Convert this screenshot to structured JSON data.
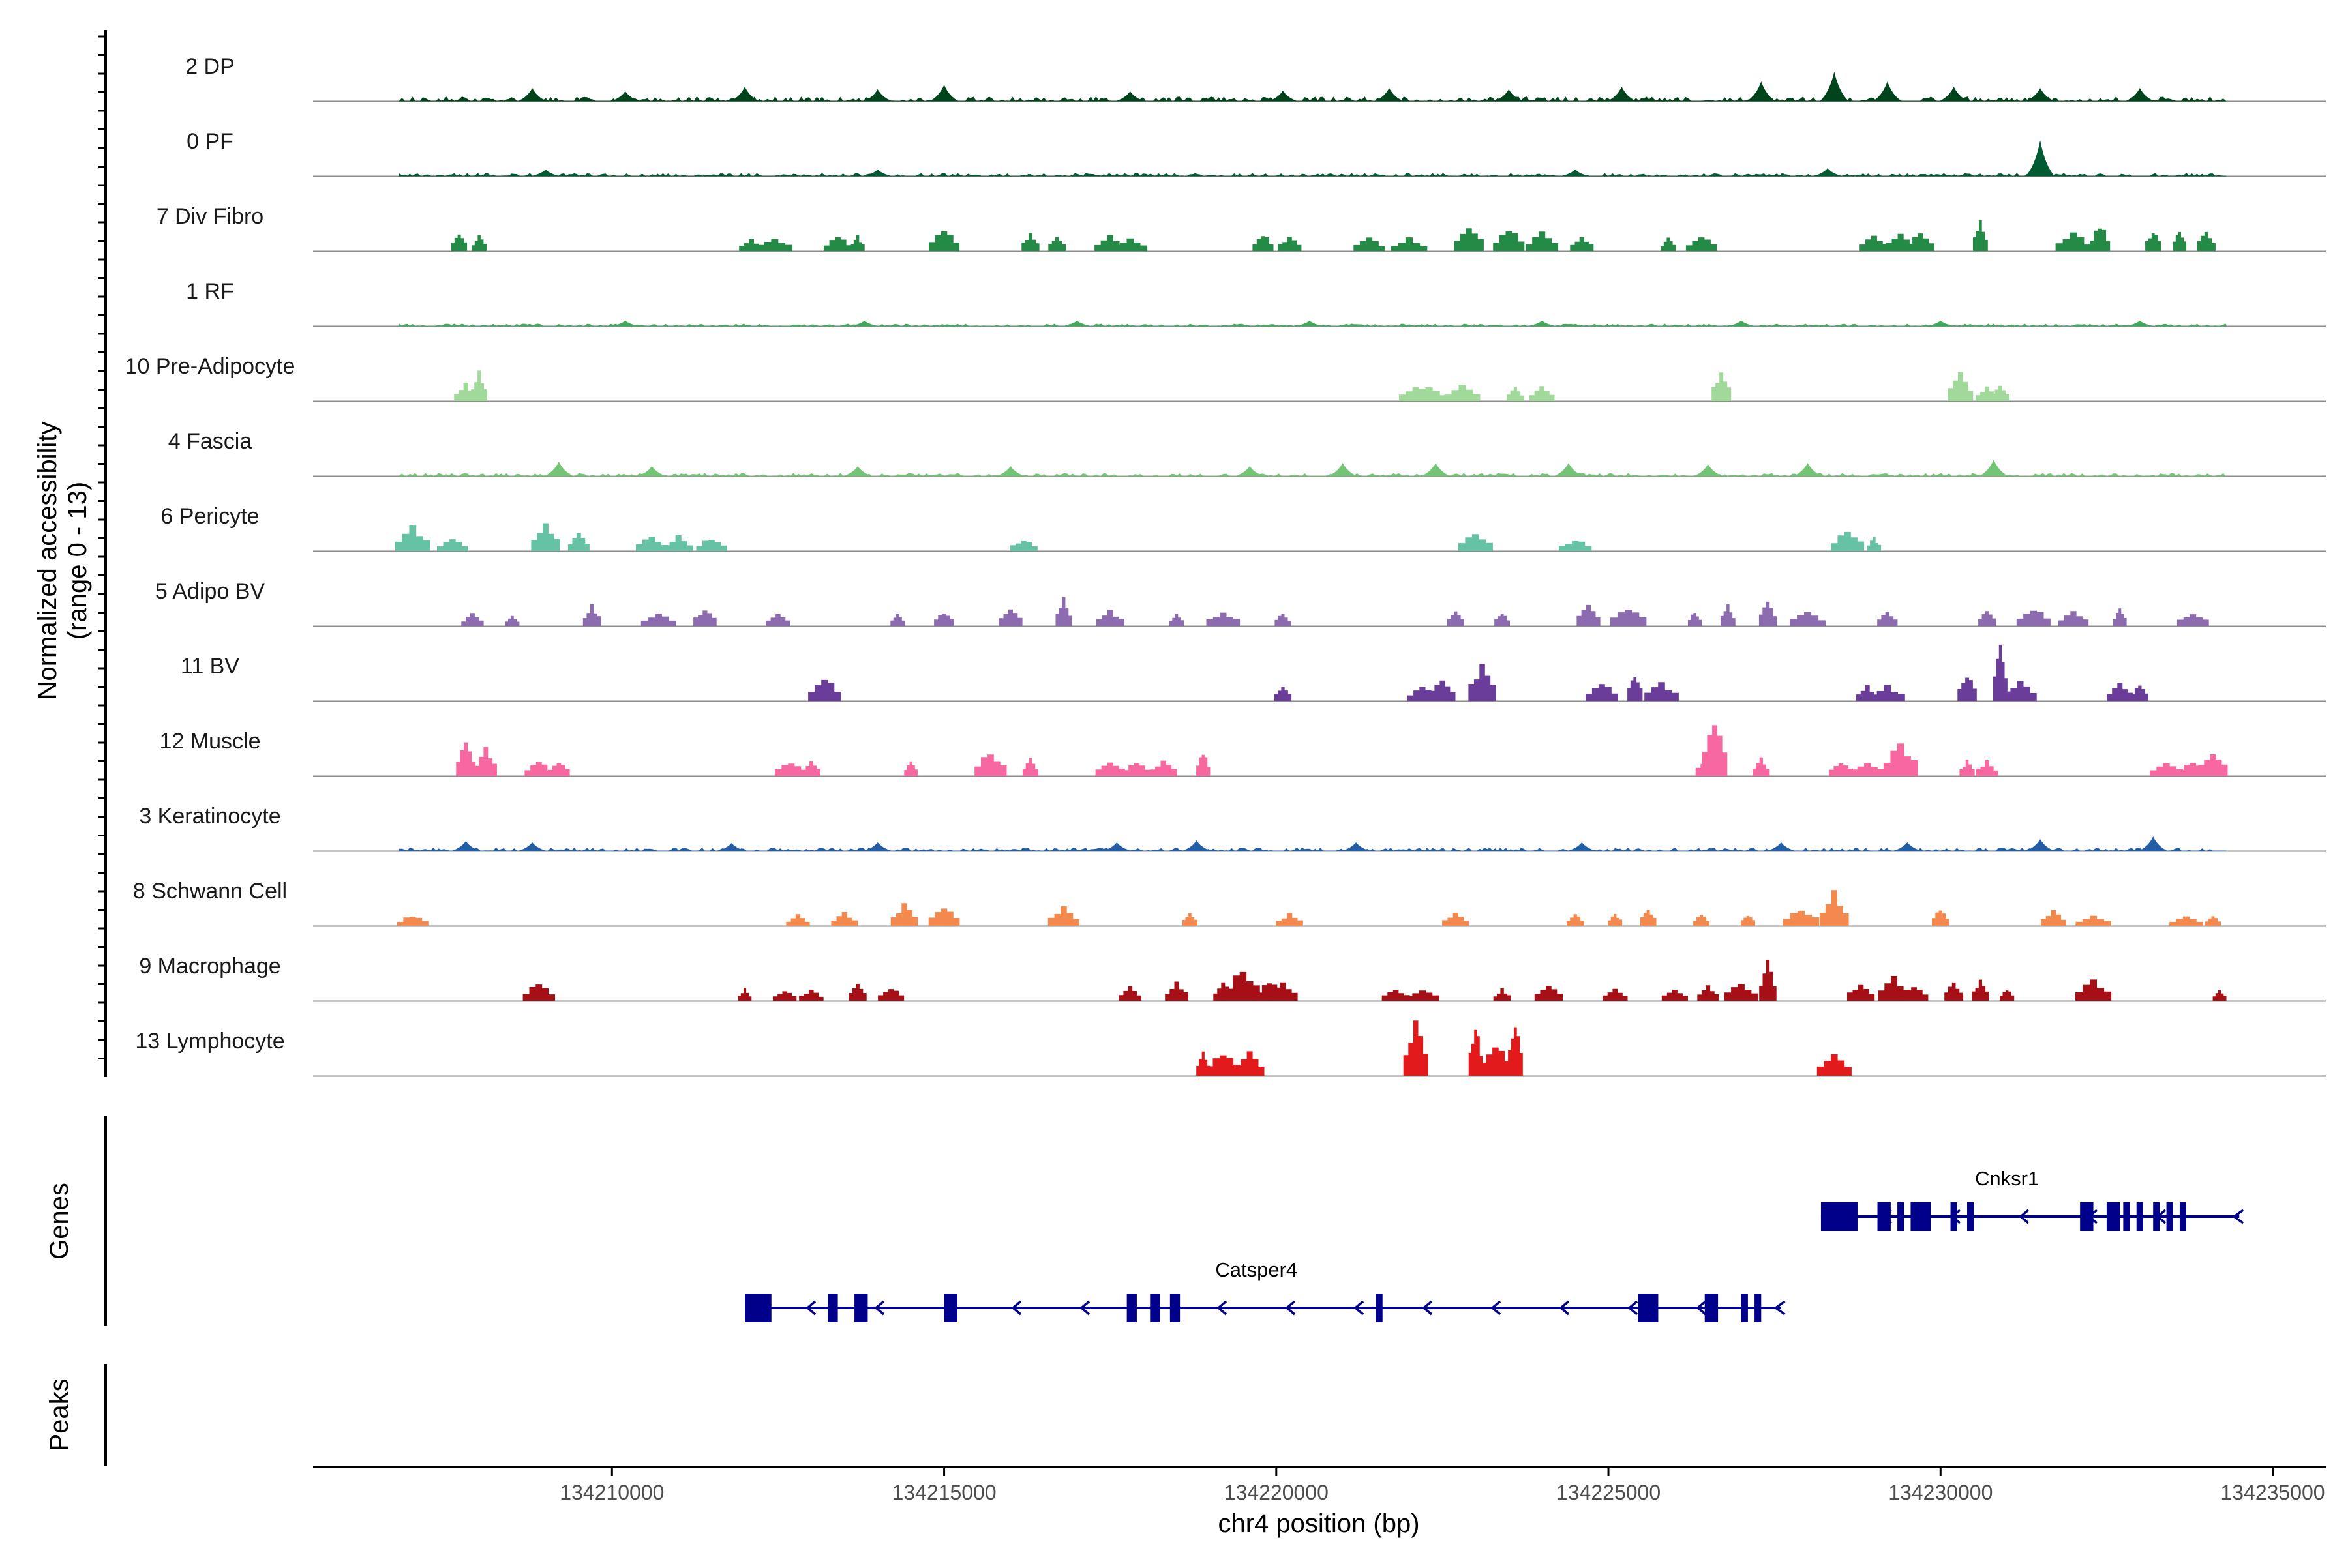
{
  "chart_data": {
    "type": "area",
    "title": "",
    "xlabel": "chr4 position (bp)",
    "ylabel": "Normalized accessibility",
    "ylabel_sub": "(range 0 - 13)",
    "y_range": [
      0,
      13
    ],
    "x_range": [
      134205500,
      134235800
    ],
    "x_ticks": [
      134210000,
      134215000,
      134220000,
      134225000,
      134230000,
      134235000
    ],
    "x_tick_labels": [
      "134210000",
      "134215000",
      "134220000",
      "134225000",
      "134230000",
      "134235000"
    ],
    "colors": {
      "baseline": "#8c8c8c",
      "axis": "#000000",
      "gene": "#00008b"
    },
    "tracks": [
      {
        "label": "2 DP",
        "color": "#00441b",
        "style": "continuous",
        "level": 0.13,
        "peaks": [
          [
            134208800,
            0.2
          ],
          [
            134210200,
            0.15
          ],
          [
            134212000,
            0.22
          ],
          [
            134214000,
            0.18
          ],
          [
            134215000,
            0.25
          ],
          [
            134217800,
            0.15
          ],
          [
            134220100,
            0.16
          ],
          [
            134221700,
            0.2
          ],
          [
            134223500,
            0.18
          ],
          [
            134225200,
            0.22
          ],
          [
            134227300,
            0.3
          ],
          [
            134228400,
            0.45
          ],
          [
            134229200,
            0.3
          ],
          [
            134230200,
            0.22
          ],
          [
            134231500,
            0.2
          ],
          [
            134233000,
            0.2
          ]
        ]
      },
      {
        "label": "0 PF",
        "color": "#005a32",
        "style": "continuous",
        "level": 0.08,
        "peaks": [
          [
            134231500,
            0.55
          ],
          [
            134209000,
            0.1
          ],
          [
            134214000,
            0.1
          ],
          [
            134224500,
            0.1
          ],
          [
            134228300,
            0.12
          ]
        ]
      },
      {
        "label": "7 Div Fibro",
        "color": "#238b45",
        "style": "sparse",
        "peaks": [
          [
            134207700,
            0.3
          ],
          [
            134208000,
            0.25
          ],
          [
            134212100,
            0.2
          ],
          [
            134212450,
            0.22
          ],
          [
            134213400,
            0.25
          ],
          [
            134213700,
            0.25
          ],
          [
            134215000,
            0.35
          ],
          [
            134216300,
            0.3
          ],
          [
            134216700,
            0.25
          ],
          [
            134217500,
            0.25
          ],
          [
            134217800,
            0.22
          ],
          [
            134219800,
            0.3
          ],
          [
            134220200,
            0.25
          ],
          [
            134221400,
            0.22
          ],
          [
            134222000,
            0.22
          ],
          [
            134222900,
            0.45
          ],
          [
            134223500,
            0.38
          ],
          [
            134224000,
            0.3
          ],
          [
            134224600,
            0.25
          ],
          [
            134225900,
            0.22
          ],
          [
            134226400,
            0.25
          ],
          [
            134229000,
            0.25
          ],
          [
            134229400,
            0.3
          ],
          [
            134229700,
            0.3
          ],
          [
            134230600,
            0.5
          ],
          [
            134232000,
            0.3
          ],
          [
            134232400,
            0.45
          ],
          [
            134233200,
            0.35
          ],
          [
            134233600,
            0.35
          ],
          [
            134234000,
            0.35
          ]
        ]
      },
      {
        "label": "1 RF",
        "color": "#41ab5d",
        "style": "continuous",
        "level": 0.06,
        "peaks": [
          [
            134210200,
            0.08
          ],
          [
            134213800,
            0.08
          ],
          [
            134217000,
            0.08
          ],
          [
            134220500,
            0.08
          ],
          [
            134224000,
            0.08
          ],
          [
            134227000,
            0.08
          ],
          [
            134230000,
            0.08
          ],
          [
            134233000,
            0.08
          ]
        ]
      },
      {
        "label": "10 Pre-Adipocyte",
        "color": "#a1d99b",
        "style": "sparse",
        "peaks": [
          [
            134207800,
            0.3
          ],
          [
            134208000,
            0.5
          ],
          [
            134222100,
            0.25
          ],
          [
            134222300,
            0.22
          ],
          [
            134222800,
            0.25
          ],
          [
            134223600,
            0.25
          ],
          [
            134224000,
            0.25
          ],
          [
            134226700,
            0.5
          ],
          [
            134230300,
            0.45
          ],
          [
            134230700,
            0.25
          ],
          [
            134230900,
            0.25
          ]
        ]
      },
      {
        "label": "4 Fascia",
        "color": "#74c476",
        "style": "continuous",
        "level": 0.08,
        "peaks": [
          [
            134209200,
            0.22
          ],
          [
            134210600,
            0.15
          ],
          [
            134213700,
            0.15
          ],
          [
            134216000,
            0.15
          ],
          [
            134219600,
            0.15
          ],
          [
            134221000,
            0.2
          ],
          [
            134222400,
            0.2
          ],
          [
            134224400,
            0.2
          ],
          [
            134226500,
            0.18
          ],
          [
            134228000,
            0.2
          ],
          [
            134230800,
            0.25
          ]
        ]
      },
      {
        "label": "6 Pericyte",
        "color": "#66c2a4",
        "style": "sparse",
        "peaks": [
          [
            134207000,
            0.4
          ],
          [
            134207600,
            0.2
          ],
          [
            134209000,
            0.45
          ],
          [
            134209500,
            0.3
          ],
          [
            134210600,
            0.25
          ],
          [
            134211000,
            0.25
          ],
          [
            134211500,
            0.22
          ],
          [
            134216200,
            0.2
          ],
          [
            134223000,
            0.3
          ],
          [
            134224500,
            0.2
          ],
          [
            134228600,
            0.35
          ],
          [
            134229000,
            0.22
          ]
        ]
      },
      {
        "label": "5 Adipo BV",
        "color": "#8c6bb1",
        "style": "sparse",
        "peaks": [
          [
            134207900,
            0.2
          ],
          [
            134208500,
            0.18
          ],
          [
            134209700,
            0.35
          ],
          [
            134210700,
            0.22
          ],
          [
            134211400,
            0.3
          ],
          [
            134212500,
            0.2
          ],
          [
            134214300,
            0.2
          ],
          [
            134215000,
            0.25
          ],
          [
            134216000,
            0.3
          ],
          [
            134216800,
            0.45
          ],
          [
            134217500,
            0.25
          ],
          [
            134218500,
            0.22
          ],
          [
            134219200,
            0.25
          ],
          [
            134220100,
            0.22
          ],
          [
            134222700,
            0.25
          ],
          [
            134223400,
            0.25
          ],
          [
            134224700,
            0.35
          ],
          [
            134225300,
            0.3
          ],
          [
            134226300,
            0.25
          ],
          [
            134226800,
            0.35
          ],
          [
            134227400,
            0.45
          ],
          [
            134228000,
            0.25
          ],
          [
            134229200,
            0.25
          ],
          [
            134230700,
            0.3
          ],
          [
            134231400,
            0.3
          ],
          [
            134232000,
            0.25
          ],
          [
            134232700,
            0.3
          ],
          [
            134233800,
            0.22
          ]
        ]
      },
      {
        "label": "11 BV",
        "color": "#6a3d9a",
        "style": "sparse",
        "peaks": [
          [
            134213200,
            0.4
          ],
          [
            134220100,
            0.25
          ],
          [
            134222200,
            0.25
          ],
          [
            134222500,
            0.35
          ],
          [
            134223100,
            0.6
          ],
          [
            134224900,
            0.3
          ],
          [
            134225400,
            0.45
          ],
          [
            134225800,
            0.3
          ],
          [
            134228900,
            0.25
          ],
          [
            134229200,
            0.25
          ],
          [
            134230400,
            0.45
          ],
          [
            134230900,
            0.9
          ],
          [
            134231200,
            0.35
          ],
          [
            134232700,
            0.3
          ],
          [
            134233000,
            0.3
          ]
        ]
      },
      {
        "label": "12 Muscle",
        "color": "#f768a1",
        "style": "sparse",
        "peaks": [
          [
            134207800,
            0.55
          ],
          [
            134208100,
            0.45
          ],
          [
            134208900,
            0.25
          ],
          [
            134209200,
            0.25
          ],
          [
            134212700,
            0.25
          ],
          [
            134213000,
            0.25
          ],
          [
            134214500,
            0.25
          ],
          [
            134215700,
            0.4
          ],
          [
            134216300,
            0.3
          ],
          [
            134217500,
            0.25
          ],
          [
            134217900,
            0.25
          ],
          [
            134218300,
            0.25
          ],
          [
            134218900,
            0.4
          ],
          [
            134226500,
            0.3
          ],
          [
            134226600,
            0.9
          ],
          [
            134227300,
            0.3
          ],
          [
            134228500,
            0.25
          ],
          [
            134228900,
            0.25
          ],
          [
            134229400,
            0.55
          ],
          [
            134230400,
            0.25
          ],
          [
            134230700,
            0.25
          ],
          [
            134233400,
            0.25
          ],
          [
            134233800,
            0.25
          ],
          [
            134234100,
            0.4
          ]
        ]
      },
      {
        "label": "3 Keratinocyte",
        "color": "#225ea8",
        "style": "continuous",
        "level": 0.09,
        "peaks": [
          [
            134207800,
            0.15
          ],
          [
            134208800,
            0.13
          ],
          [
            134211800,
            0.12
          ],
          [
            134214000,
            0.13
          ],
          [
            134217600,
            0.13
          ],
          [
            134218800,
            0.16
          ],
          [
            134221200,
            0.13
          ],
          [
            134224600,
            0.13
          ],
          [
            134227600,
            0.13
          ],
          [
            134229500,
            0.13
          ],
          [
            134231500,
            0.18
          ],
          [
            134233200,
            0.22
          ]
        ]
      },
      {
        "label": "8 Schwann Cell",
        "color": "#f4894e",
        "style": "sparse",
        "peaks": [
          [
            134207000,
            0.18
          ],
          [
            134212800,
            0.18
          ],
          [
            134213500,
            0.22
          ],
          [
            134214400,
            0.35
          ],
          [
            134215000,
            0.35
          ],
          [
            134216800,
            0.3
          ],
          [
            134218700,
            0.22
          ],
          [
            134220200,
            0.2
          ],
          [
            134222700,
            0.2
          ],
          [
            134224500,
            0.2
          ],
          [
            134225100,
            0.22
          ],
          [
            134225600,
            0.3
          ],
          [
            134226400,
            0.2
          ],
          [
            134227100,
            0.2
          ],
          [
            134227900,
            0.3
          ],
          [
            134228400,
            0.55
          ],
          [
            134230000,
            0.3
          ],
          [
            134231700,
            0.25
          ],
          [
            134232300,
            0.18
          ],
          [
            134233700,
            0.18
          ],
          [
            134234100,
            0.18
          ]
        ]
      },
      {
        "label": "9 Macrophage",
        "color": "#a50f15",
        "style": "sparse",
        "peaks": [
          [
            134208900,
            0.3
          ],
          [
            134212000,
            0.2
          ],
          [
            134212600,
            0.18
          ],
          [
            134213000,
            0.18
          ],
          [
            134213700,
            0.3
          ],
          [
            134214200,
            0.22
          ],
          [
            134217800,
            0.22
          ],
          [
            134218500,
            0.3
          ],
          [
            134219200,
            0.3
          ],
          [
            134219500,
            0.55
          ],
          [
            134219900,
            0.35
          ],
          [
            134220100,
            0.3
          ],
          [
            134221800,
            0.2
          ],
          [
            134222200,
            0.2
          ],
          [
            134223400,
            0.2
          ],
          [
            134224100,
            0.25
          ],
          [
            134225100,
            0.2
          ],
          [
            134226000,
            0.2
          ],
          [
            134226500,
            0.25
          ],
          [
            134227000,
            0.3
          ],
          [
            134227400,
            0.65
          ],
          [
            134228800,
            0.3
          ],
          [
            134229300,
            0.4
          ],
          [
            134229600,
            0.25
          ],
          [
            134230200,
            0.3
          ],
          [
            134230600,
            0.35
          ],
          [
            134231000,
            0.2
          ],
          [
            134232300,
            0.35
          ],
          [
            134234200,
            0.2
          ]
        ]
      },
      {
        "label": "13 Lymphocyte",
        "color": "#e31a1c",
        "style": "sparse",
        "peaks": [
          [
            134218900,
            0.4
          ],
          [
            134219200,
            0.4
          ],
          [
            134219600,
            0.4
          ],
          [
            134222100,
            0.85
          ],
          [
            134223000,
            0.9
          ],
          [
            134223300,
            0.55
          ],
          [
            134223600,
            0.9
          ],
          [
            134228400,
            0.4
          ]
        ]
      }
    ],
    "panels": {
      "genes_label": "Genes",
      "peaks_label": "Peaks"
    },
    "genes": [
      {
        "name": "Cnksr1",
        "start": 134228200,
        "end": 134234300,
        "strand": "-",
        "exons": [
          [
            134228200,
            134228750
          ],
          [
            134229050,
            134229250
          ],
          [
            134229350,
            134229450
          ],
          [
            134229550,
            134229850
          ],
          [
            134230150,
            134230250
          ],
          [
            134230400,
            134230500
          ],
          [
            134232100,
            134232300
          ],
          [
            134232500,
            134232700
          ],
          [
            134232750,
            134232850
          ],
          [
            134232950,
            134233000
          ],
          [
            134233200,
            134233250
          ],
          [
            134233400,
            134233450
          ],
          [
            134233600,
            134233650
          ]
        ]
      },
      {
        "name": "Catsper4",
        "start": 134212000,
        "end": 134227400,
        "strand": "-",
        "exons": [
          [
            134212000,
            134212400
          ],
          [
            134213250,
            134213400
          ],
          [
            134213650,
            134213850
          ],
          [
            134215000,
            134215200
          ],
          [
            134217750,
            134217900
          ],
          [
            134218100,
            134218250
          ],
          [
            134218400,
            134218550
          ],
          [
            134221500,
            134221600
          ],
          [
            134225450,
            134225750
          ],
          [
            134226450,
            134226650
          ],
          [
            134227000,
            134227100
          ],
          [
            134227200,
            134227300
          ]
        ]
      }
    ]
  }
}
